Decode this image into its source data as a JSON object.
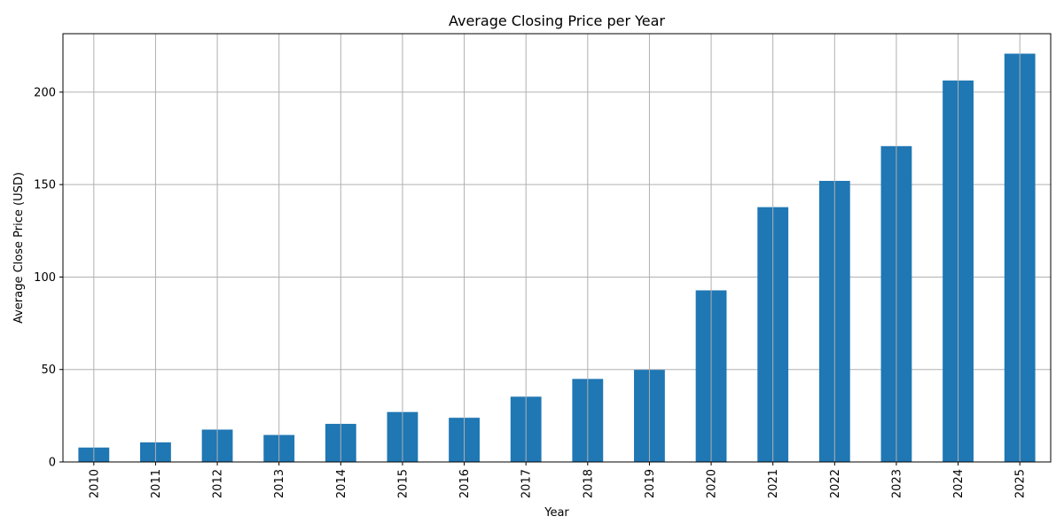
{
  "chart_data": {
    "type": "bar",
    "title": "Average Closing Price per Year",
    "xlabel": "Year",
    "ylabel": "Average Close Price (USD)",
    "categories": [
      "2010",
      "2011",
      "2012",
      "2013",
      "2014",
      "2015",
      "2016",
      "2017",
      "2018",
      "2019",
      "2020",
      "2021",
      "2022",
      "2023",
      "2024",
      "2025"
    ],
    "values": [
      7.8,
      10.6,
      17.5,
      14.6,
      20.6,
      27.0,
      23.9,
      35.3,
      44.9,
      49.8,
      92.8,
      137.8,
      152.0,
      170.8,
      206.3,
      220.8
    ],
    "ylim": [
      0,
      231.6
    ],
    "yticks": [
      0,
      50,
      100,
      150,
      200
    ],
    "grid": true,
    "bar_color": "#1f77b4",
    "grid_color": "#b0b0b0"
  }
}
